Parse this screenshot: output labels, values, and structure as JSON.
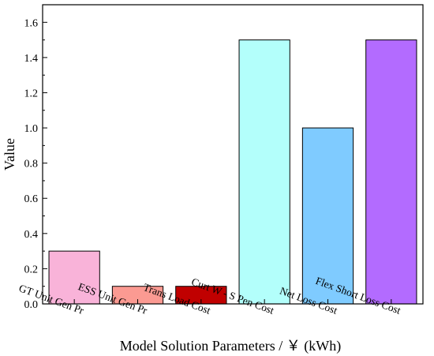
{
  "chart_data": {
    "type": "bar",
    "title": "",
    "xlabel": "Model Solution Parameters / ￥ (kWh)",
    "ylabel": "Value",
    "categories": [
      "GT Unit Gen Pr",
      "ESS Unit Gen Pr",
      "Trans Load Cost",
      "Curt W - S Pen Cost",
      "Net Loss Cost",
      "Flex Short Loss Cost"
    ],
    "values": [
      0.3,
      0.1,
      0.1,
      1.5,
      1.0,
      1.5
    ],
    "colors": [
      "#f9b3d9",
      "#fb9a92",
      "#c00000",
      "#b3fffb",
      "#7fcbff",
      "#b36bff"
    ],
    "ylim": [
      0,
      1.7
    ],
    "yticks": [
      "0.0",
      "0.2",
      "0.4",
      "0.6",
      "0.8",
      "1.0",
      "1.2",
      "1.4",
      "1.6"
    ],
    "grid": false,
    "legend": "none"
  }
}
